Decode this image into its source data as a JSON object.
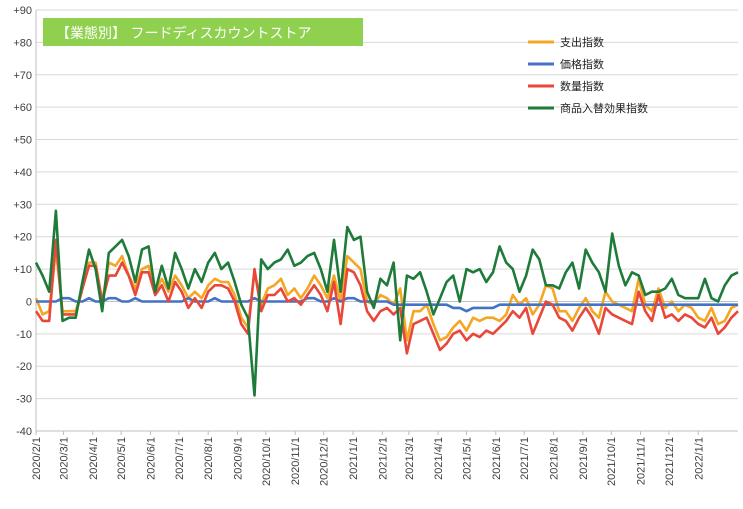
{
  "chart_data": {
    "type": "line",
    "title": "【業態別】 フードディスカウントストア",
    "xlabel": "",
    "ylabel": "",
    "ylim": [
      -40,
      90
    ],
    "yticks": [
      -40,
      -30,
      -20,
      -10,
      0,
      10,
      20,
      30,
      40,
      50,
      60,
      70,
      80,
      90
    ],
    "ytick_labels": [
      "-40",
      "-30",
      "-20",
      "-10",
      "0",
      "+10",
      "+20",
      "+30",
      "+40",
      "+50",
      "+60",
      "+70",
      "+80",
      "+90"
    ],
    "x_start": "2020/2/1",
    "x_step_days": 7,
    "x_tick_labels": [
      "2020/2/1",
      "2020/3/1",
      "2020/4/1",
      "2020/5/1",
      "2020/6/1",
      "2020/7/1",
      "2020/8/1",
      "2020/9/1",
      "2020/10/1",
      "2020/11/1",
      "2020/12/1",
      "2021/1/1",
      "2021/2/1",
      "2021/3/1",
      "2021/4/1",
      "2021/5/1",
      "2021/6/1",
      "2021/7/1",
      "2021/8/1",
      "2021/9/1",
      "2021/10/1",
      "2021/11/1",
      "2021/12/1",
      "2022/1/1"
    ],
    "grid": true,
    "legend_position": "top-right",
    "series": [
      {
        "name": "支出指数",
        "color": "#f5a623",
        "values": [
          1,
          -4,
          -3,
          16,
          -3,
          -3,
          -3,
          4,
          12,
          12,
          0,
          12,
          11,
          14,
          8,
          4,
          10,
          11,
          3,
          7,
          3,
          8,
          5,
          1,
          3,
          1,
          5,
          7,
          6,
          6,
          2,
          -5,
          -8,
          9,
          -1,
          4,
          5,
          7,
          2,
          4,
          1,
          4,
          8,
          5,
          1,
          8,
          0,
          14,
          12,
          10,
          0,
          -1,
          2,
          1,
          -1,
          4,
          -12,
          -3,
          -3,
          -1,
          -7,
          -12,
          -11,
          -8,
          -6,
          -9,
          -5,
          -6,
          -5,
          -5,
          -6,
          -4,
          2,
          -1,
          1,
          -4,
          -1,
          5,
          4,
          -3,
          -3,
          -6,
          -2,
          1,
          -3,
          -5,
          3,
          0,
          -1,
          -2,
          -3,
          7,
          -1,
          -3,
          4,
          -2,
          0,
          -3,
          -1,
          -2,
          -5,
          -6,
          -2,
          -7,
          -6,
          -2,
          -1
        ]
      },
      {
        "name": "価格指数",
        "color": "#4472c4",
        "values": [
          0,
          0,
          0,
          0,
          1,
          1,
          0,
          0,
          1,
          0,
          0,
          1,
          1,
          0,
          0,
          1,
          0,
          0,
          0,
          0,
          0,
          0,
          0,
          1,
          0,
          0,
          0,
          1,
          0,
          0,
          0,
          0,
          0,
          1,
          0,
          0,
          0,
          0,
          0,
          0,
          0,
          1,
          1,
          0,
          0,
          1,
          0,
          1,
          1,
          0,
          0,
          0,
          0,
          0,
          -1,
          -1,
          -1,
          -1,
          -1,
          -1,
          -1,
          -1,
          -1,
          -2,
          -2,
          -3,
          -2,
          -2,
          -2,
          -2,
          -1,
          -1,
          -1,
          -1,
          -1,
          -1,
          -1,
          -1,
          -1,
          -1,
          -1,
          -1,
          -1,
          -1,
          -1,
          -1,
          -1,
          -1,
          -1,
          -1,
          -1,
          -1,
          -1,
          -1,
          -1,
          -1,
          -1,
          -1,
          -1,
          -1,
          -1,
          -1,
          -1,
          -1,
          -1,
          -1,
          -1
        ]
      },
      {
        "name": "数量指数",
        "color": "#e8473a",
        "values": [
          -3,
          -6,
          -6,
          19,
          -4,
          -4,
          -4,
          4,
          11,
          11,
          0,
          8,
          8,
          12,
          8,
          2,
          9,
          9,
          2,
          5,
          0,
          6,
          3,
          -2,
          1,
          -2,
          3,
          5,
          5,
          4,
          0,
          -7,
          -10,
          10,
          -3,
          2,
          2,
          4,
          0,
          1,
          -1,
          2,
          5,
          2,
          -3,
          6,
          -7,
          10,
          9,
          5,
          -3,
          -6,
          -3,
          -2,
          -4,
          -2,
          -16,
          -7,
          -6,
          -5,
          -10,
          -15,
          -13,
          -10,
          -9,
          -12,
          -10,
          -11,
          -9,
          -10,
          -8,
          -6,
          -3,
          -5,
          -2,
          -10,
          -5,
          0,
          -1,
          -5,
          -6,
          -9,
          -5,
          -2,
          -5,
          -10,
          -2,
          -4,
          -5,
          -6,
          -7,
          3,
          -3,
          -6,
          2,
          -5,
          -4,
          -6,
          -4,
          -5,
          -7,
          -8,
          -5,
          -10,
          -8,
          -5,
          -3
        ]
      },
      {
        "name": "商品入替効果指数",
        "color": "#1e7b3a",
        "values": [
          12,
          8,
          3,
          28,
          -6,
          -5,
          -5,
          6,
          16,
          10,
          -3,
          15,
          17,
          19,
          14,
          6,
          16,
          17,
          3,
          11,
          4,
          15,
          10,
          4,
          10,
          6,
          12,
          15,
          10,
          12,
          6,
          -1,
          -5,
          -29,
          13,
          10,
          12,
          13,
          16,
          11,
          12,
          14,
          15,
          10,
          3,
          19,
          3,
          23,
          19,
          20,
          3,
          -2,
          7,
          5,
          12,
          -12,
          8,
          7,
          9,
          3,
          -4,
          1,
          6,
          8,
          0,
          10,
          9,
          10,
          6,
          9,
          17,
          12,
          10,
          3,
          8,
          16,
          13,
          5,
          5,
          4,
          9,
          12,
          4,
          16,
          12,
          9,
          3,
          21,
          11,
          5,
          9,
          8,
          2,
          3,
          3,
          4,
          7,
          2,
          1,
          1,
          1,
          7,
          1,
          0,
          5,
          8,
          9
        ]
      }
    ]
  }
}
